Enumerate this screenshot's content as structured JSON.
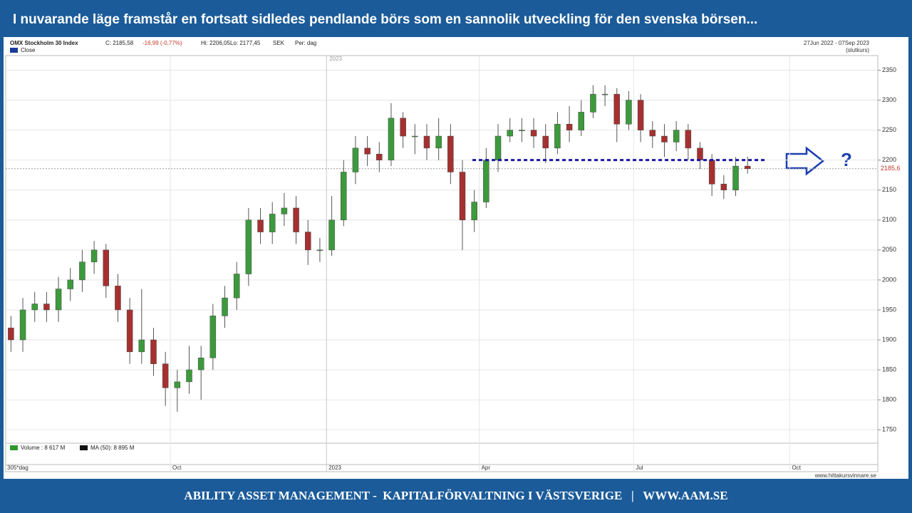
{
  "header": {
    "title": "I nuvarande läge framstår en fortsatt sidledes pendlande börs som en sannolik utveckling för den svenska börsen..."
  },
  "footer": {
    "text": "ABILITY ASSET MANAGEMENT -  KAPITALFÖRVALTNING I VÄSTSVERIGE   |   WWW.AAM.SE"
  },
  "chart_data": {
    "type": "candlestick",
    "title": "OMX Stockholm 30 Index",
    "info": [
      "C: 2185,58",
      "-16,99 (-0,77%)",
      "Hi: 2206,05",
      "Lo: 2177,45",
      "SEK",
      "Per: dag"
    ],
    "period": "27Jun 2022 - 07Sep 2023",
    "period_note": "(slutkurs)",
    "series_label": "Close",
    "volume_legend": [
      "Volume : 8 617 M",
      "MA (50): 8 895 M"
    ],
    "x_period_label": "305*dag",
    "source": "www.hittakursvinnare.se",
    "annotation": "?",
    "up_color": "#3c9a3c",
    "down_color": "#a63030",
    "x": [
      "2022-06-27",
      "2022-07-04",
      "2022-07-11",
      "2022-07-18",
      "2022-07-25",
      "2022-08-01",
      "2022-08-08",
      "2022-08-15",
      "2022-08-22",
      "2022-08-29",
      "2022-09-05",
      "2022-09-12",
      "2022-09-19",
      "2022-09-26",
      "2022-10-03",
      "2022-10-10",
      "2022-10-17",
      "2022-10-24",
      "2022-10-31",
      "2022-11-07",
      "2022-11-14",
      "2022-11-21",
      "2022-11-28",
      "2022-12-05",
      "2022-12-12",
      "2022-12-19",
      "2022-12-26",
      "2023-01-02",
      "2023-01-09",
      "2023-01-16",
      "2023-01-23",
      "2023-01-30",
      "2023-02-06",
      "2023-02-13",
      "2023-02-20",
      "2023-02-27",
      "2023-03-06",
      "2023-03-13",
      "2023-03-20",
      "2023-03-27",
      "2023-04-03",
      "2023-04-10",
      "2023-04-17",
      "2023-04-24",
      "2023-05-01",
      "2023-05-08",
      "2023-05-15",
      "2023-05-22",
      "2023-05-29",
      "2023-06-05",
      "2023-06-12",
      "2023-06-19",
      "2023-06-26",
      "2023-07-03",
      "2023-07-10",
      "2023-07-17",
      "2023-07-24",
      "2023-07-31",
      "2023-08-07",
      "2023-08-14",
      "2023-08-21",
      "2023-08-28",
      "2023-09-04"
    ],
    "open": [
      1920,
      1900,
      1950,
      1960,
      1950,
      1985,
      2000,
      2030,
      2050,
      1990,
      1950,
      1880,
      1900,
      1860,
      1820,
      1830,
      1850,
      1870,
      1940,
      1970,
      2010,
      2100,
      2080,
      2110,
      2120,
      2080,
      2050,
      2050,
      2100,
      2180,
      2220,
      2210,
      2200,
      2270,
      2240,
      2240,
      2220,
      2240,
      2180,
      2100,
      2130,
      2200,
      2240,
      2250,
      2250,
      2240,
      2220,
      2260,
      2250,
      2280,
      2310,
      2310,
      2260,
      2300,
      2250,
      2240,
      2230,
      2250,
      2220,
      2200,
      2160,
      2150,
      2190
    ],
    "high": [
      1940,
      1970,
      1980,
      1980,
      2005,
      2020,
      2050,
      2065,
      2060,
      2010,
      1970,
      1985,
      1920,
      1880,
      1850,
      1890,
      1890,
      1960,
      1990,
      2030,
      2120,
      2120,
      2130,
      2145,
      2140,
      2100,
      2070,
      2140,
      2200,
      2240,
      2240,
      2230,
      2295,
      2280,
      2260,
      2260,
      2270,
      2260,
      2200,
      2150,
      2220,
      2260,
      2270,
      2270,
      2270,
      2260,
      2280,
      2290,
      2300,
      2325,
      2325,
      2320,
      2315,
      2310,
      2265,
      2260,
      2265,
      2260,
      2230,
      2210,
      2175,
      2205,
      2206.05
    ],
    "low": [
      1880,
      1880,
      1930,
      1930,
      1930,
      1965,
      1980,
      2010,
      1970,
      1930,
      1860,
      1860,
      1840,
      1790,
      1780,
      1810,
      1800,
      1850,
      1920,
      1950,
      1990,
      2060,
      2060,
      2090,
      2060,
      2025,
      2030,
      2040,
      2090,
      2160,
      2190,
      2180,
      2190,
      2220,
      2210,
      2200,
      2200,
      2160,
      2050,
      2080,
      2120,
      2180,
      2230,
      2230,
      2220,
      2195,
      2210,
      2230,
      2240,
      2270,
      2290,
      2230,
      2250,
      2230,
      2220,
      2205,
      2215,
      2200,
      2185,
      2140,
      2135,
      2140,
      2177.45
    ],
    "close": [
      1900,
      1950,
      1960,
      1950,
      1985,
      2000,
      2030,
      2050,
      1990,
      1950,
      1880,
      1900,
      1860,
      1820,
      1830,
      1850,
      1870,
      1940,
      1970,
      2010,
      2100,
      2080,
      2110,
      2120,
      2080,
      2050,
      2050,
      2100,
      2180,
      2220,
      2210,
      2200,
      2270,
      2240,
      2240,
      2220,
      2240,
      2180,
      2100,
      2130,
      2200,
      2240,
      2250,
      2250,
      2240,
      2220,
      2260,
      2250,
      2280,
      2310,
      2310,
      2260,
      2300,
      2250,
      2240,
      2230,
      2250,
      2220,
      2200,
      2160,
      2150,
      2190,
      2185.58
    ],
    "xlim": [
      "2022-06-26",
      "2023-11-21"
    ],
    "xticks": [
      {
        "value": "2022-10-01",
        "label": "Oct"
      },
      {
        "value": "2023-01-01",
        "label": "2023"
      },
      {
        "value": "2023-04-01",
        "label": "Apr"
      },
      {
        "value": "2023-07-01",
        "label": "Jul"
      },
      {
        "value": "2023-10-01",
        "label": "Oct"
      }
    ],
    "ylim": [
      1730,
      2372
    ],
    "yticks": [
      1750,
      1800,
      1850,
      1900,
      1950,
      2000,
      2050,
      2100,
      2150,
      2200,
      2250,
      2300,
      2350
    ],
    "last_price": {
      "value": 2185.6,
      "label": "2185,6"
    },
    "reference_line": {
      "value": 2200,
      "x": [
        "2023-03-28",
        "2023-09-17"
      ],
      "color": "#1a1aa0"
    },
    "grid": true
  }
}
